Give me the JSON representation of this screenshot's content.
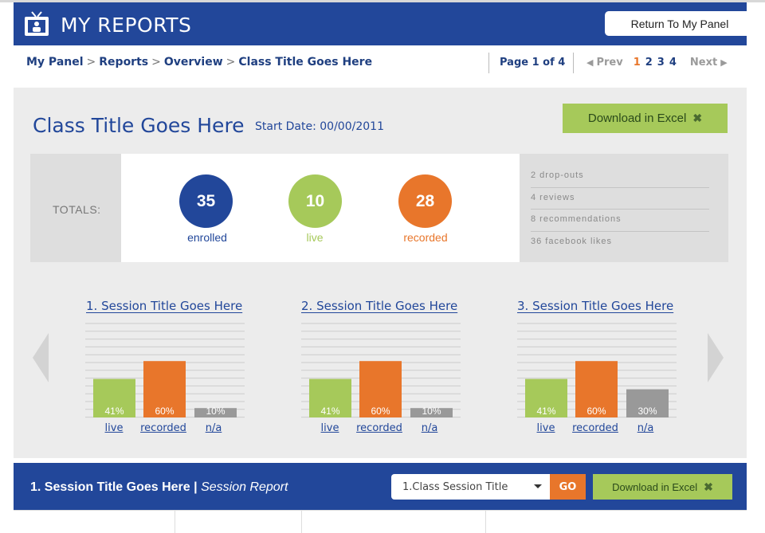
{
  "header": {
    "app_title": "MY REPORTS",
    "return_label": "Return To My Panel"
  },
  "breadcrumb": {
    "items": [
      "My Panel",
      "Reports",
      "Overview",
      "Class Title Goes Here"
    ]
  },
  "pagination": {
    "page_of": "Page 1 of 4",
    "prev": "Prev",
    "next": "Next",
    "pages": [
      "1",
      "2",
      "3",
      "4"
    ],
    "current": "1"
  },
  "class_info": {
    "title": "Class Title Goes Here",
    "start_date": "Start Date: 00/00/2011",
    "download_label": "Download in Excel"
  },
  "totals": {
    "label": "TOTALS:",
    "enrolled": {
      "value": "35",
      "label": "enrolled",
      "color": "#22479a"
    },
    "live": {
      "value": "10",
      "label": "live",
      "color": "#a6c95a"
    },
    "recorded": {
      "value": "28",
      "label": "recorded",
      "color": "#e8762b"
    },
    "stats": [
      "2 drop-outs",
      "4 reviews",
      "8 recommendations",
      "36 facebook likes"
    ]
  },
  "chart_data": [
    {
      "type": "bar",
      "title": "1. Session Title Goes Here",
      "categories": [
        "live",
        "recorded",
        "n/a"
      ],
      "values": [
        41,
        60,
        10
      ],
      "value_labels": [
        "41%",
        "60%",
        "10%"
      ],
      "colors": [
        "#a6c95a",
        "#e8762b",
        "#999999"
      ],
      "ylim": [
        0,
        100
      ],
      "grid": true
    },
    {
      "type": "bar",
      "title": "2. Session Title Goes Here",
      "categories": [
        "live",
        "recorded",
        "n/a"
      ],
      "values": [
        41,
        60,
        10
      ],
      "value_labels": [
        "41%",
        "60%",
        "10%"
      ],
      "colors": [
        "#a6c95a",
        "#e8762b",
        "#999999"
      ],
      "ylim": [
        0,
        100
      ],
      "grid": true
    },
    {
      "type": "bar",
      "title": "3. Session Title Goes Here",
      "categories": [
        "live",
        "recorded",
        "n/a"
      ],
      "values": [
        41,
        60,
        30
      ],
      "value_labels": [
        "41%",
        "60%",
        "30%"
      ],
      "colors": [
        "#a6c95a",
        "#e8762b",
        "#999999"
      ],
      "ylim": [
        0,
        100
      ],
      "grid": true
    }
  ],
  "footer": {
    "session_title": "1. Session Title Goes Here",
    "separator": " | ",
    "session_report": "Session Report",
    "select_value": "1.Class Session Title",
    "go_label": "GO",
    "download_label": "Download in Excel"
  }
}
